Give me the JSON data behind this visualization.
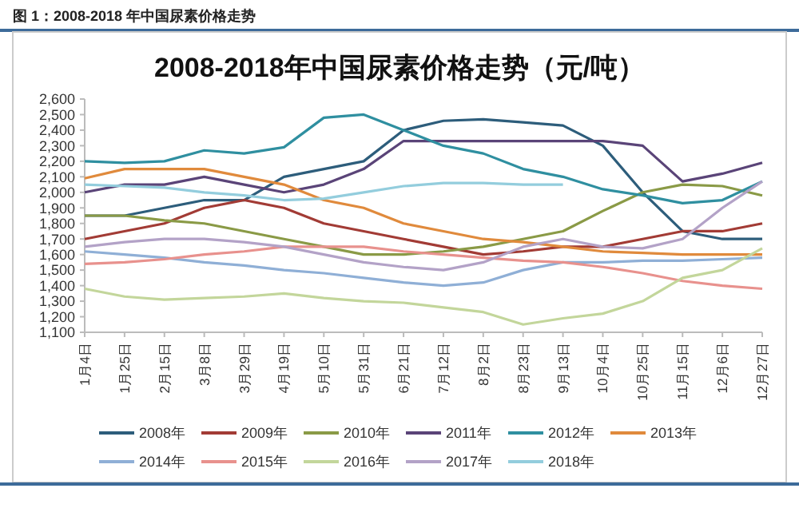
{
  "chart_data": {
    "type": "line",
    "title": "2008-2018年中国尿素价格走势（元/吨）",
    "annotations": [
      "图 1：2008-2018 年中国尿素价格走势"
    ],
    "categories": [
      "1月4日",
      "1月25日",
      "2月15日",
      "3月8日",
      "3月29日",
      "4月19日",
      "5月10日",
      "5月31日",
      "6月21日",
      "7月12日",
      "8月2日",
      "8月23日",
      "9月13日",
      "10月4日",
      "10月25日",
      "11月15日",
      "12月6日",
      "12月27日"
    ],
    "ylim": [
      1100,
      2600
    ],
    "yticks": [
      {
        "value": 1100,
        "label": "1,100"
      },
      {
        "value": 1200,
        "label": "1,200"
      },
      {
        "value": 1300,
        "label": "1,300"
      },
      {
        "value": 1400,
        "label": "1,400"
      },
      {
        "value": 1500,
        "label": "1,500"
      },
      {
        "value": 1600,
        "label": "1,600"
      },
      {
        "value": 1700,
        "label": "1,700"
      },
      {
        "value": 1800,
        "label": "1,800"
      },
      {
        "value": 1900,
        "label": "1,900"
      },
      {
        "value": 2000,
        "label": "2,000"
      },
      {
        "value": 2100,
        "label": "2,100"
      },
      {
        "value": 2200,
        "label": "2,200"
      },
      {
        "value": 2300,
        "label": "2,300"
      },
      {
        "value": 2400,
        "label": "2,400"
      },
      {
        "value": 2500,
        "label": "2,500"
      },
      {
        "value": 2600,
        "label": "2,600"
      }
    ],
    "legend": "bottom",
    "series": [
      {
        "name": "2008年",
        "color": "#2d5d7b",
        "values": [
          1850,
          1850,
          1900,
          1950,
          1950,
          2100,
          2150,
          2200,
          2400,
          2460,
          2470,
          2450,
          2430,
          2300,
          2000,
          1750,
          1700,
          1700
        ]
      },
      {
        "name": "2009年",
        "color": "#a23b35",
        "values": [
          1700,
          1750,
          1800,
          1900,
          1950,
          1900,
          1800,
          1750,
          1700,
          1650,
          1600,
          1620,
          1650,
          1650,
          1700,
          1750,
          1750,
          1800
        ]
      },
      {
        "name": "2010年",
        "color": "#8a9a46",
        "values": [
          1850,
          1850,
          1820,
          1800,
          1750,
          1700,
          1650,
          1600,
          1600,
          1620,
          1650,
          1700,
          1750,
          1880,
          2000,
          2050,
          2040,
          1980
        ]
      },
      {
        "name": "2011年",
        "color": "#5a4478",
        "values": [
          2000,
          2050,
          2050,
          2100,
          2050,
          2000,
          2050,
          2150,
          2330,
          2330,
          2330,
          2330,
          2330,
          2330,
          2300,
          2070,
          2120,
          2190
        ]
      },
      {
        "name": "2012年",
        "color": "#2f8fa0",
        "values": [
          2200,
          2190,
          2200,
          2270,
          2250,
          2290,
          2480,
          2500,
          2400,
          2300,
          2250,
          2150,
          2100,
          2020,
          1980,
          1930,
          1950,
          2070
        ]
      },
      {
        "name": "2013年",
        "color": "#e08a3c",
        "values": [
          2090,
          2150,
          2150,
          2150,
          2100,
          2050,
          1950,
          1900,
          1800,
          1750,
          1700,
          1680,
          1650,
          1620,
          1610,
          1600,
          1600,
          1600
        ]
      },
      {
        "name": "2014年",
        "color": "#8fafd6",
        "values": [
          1620,
          1600,
          1580,
          1550,
          1530,
          1500,
          1480,
          1450,
          1420,
          1400,
          1420,
          1500,
          1550,
          1550,
          1560,
          1560,
          1570,
          1580
        ]
      },
      {
        "name": "2015年",
        "color": "#e8918d",
        "values": [
          1540,
          1550,
          1570,
          1600,
          1620,
          1650,
          1650,
          1650,
          1620,
          1600,
          1580,
          1560,
          1550,
          1520,
          1480,
          1430,
          1400,
          1380
        ]
      },
      {
        "name": "2016年",
        "color": "#c3d69b",
        "values": [
          1380,
          1330,
          1310,
          1320,
          1330,
          1350,
          1320,
          1300,
          1290,
          1260,
          1230,
          1150,
          1190,
          1220,
          1300,
          1450,
          1500,
          1640
        ]
      },
      {
        "name": "2017年",
        "color": "#b3a2c7",
        "values": [
          1650,
          1680,
          1700,
          1700,
          1680,
          1650,
          1600,
          1550,
          1520,
          1500,
          1550,
          1650,
          1700,
          1650,
          1640,
          1700,
          1900,
          2070
        ]
      },
      {
        "name": "2018年",
        "color": "#93cddd",
        "values": [
          2050,
          2040,
          2030,
          2000,
          1980,
          1950,
          1960,
          2000,
          2040,
          2060,
          2060,
          2050,
          2050,
          null,
          null,
          null,
          null,
          null
        ]
      }
    ]
  }
}
